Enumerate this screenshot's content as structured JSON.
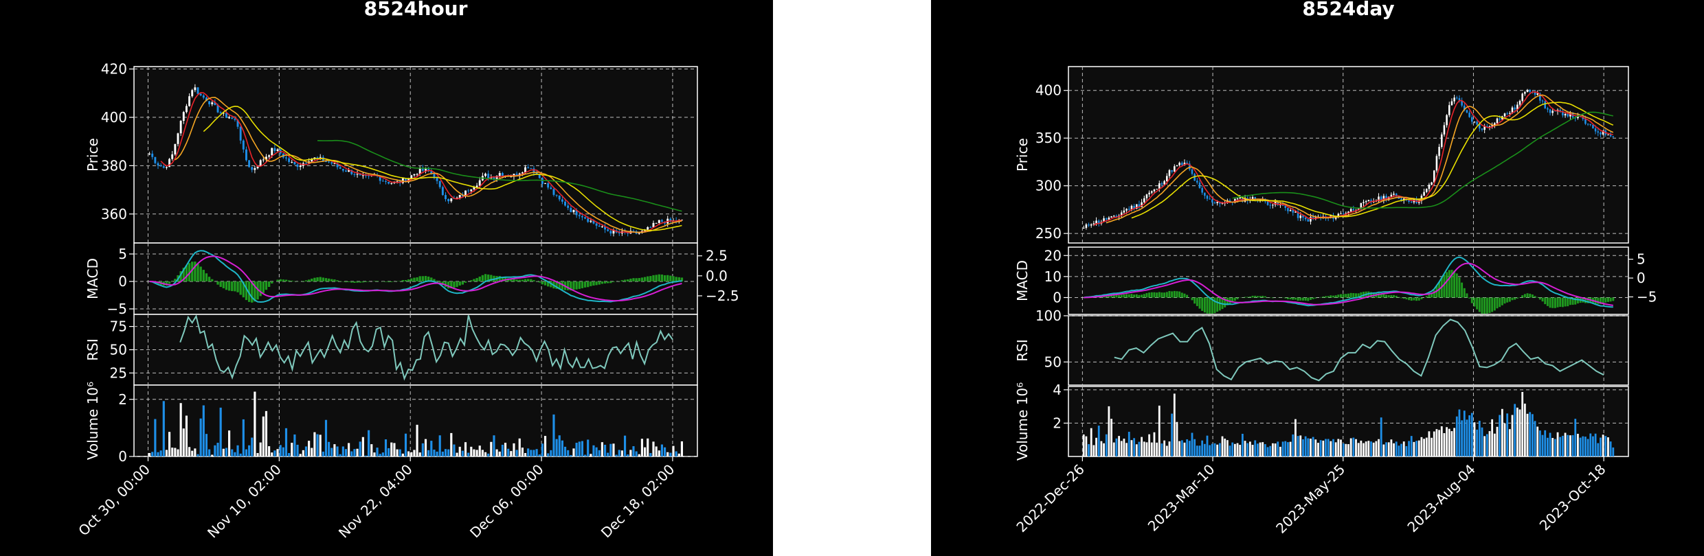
{
  "chart_data": [
    {
      "type": "candlestick",
      "title": "8524hour",
      "colors": {
        "background": "#000000",
        "panel": "#0d0d0d",
        "up": "#ffffff",
        "down": "#1e8fe8",
        "ma_short": "#e8232a",
        "ma_mid": "#f5a623",
        "ma_long": "#e8e000",
        "ma_longest": "#1a8f1a",
        "macd": "#1fb6c8",
        "signal": "#d61fd6",
        "hist": "#1f9a1f",
        "rsi": "#7fc9bd",
        "grid": "#bfbfbf"
      },
      "x_ticks": [
        "Oct 30, 00:00",
        "Nov 10, 02:00",
        "Nov 22, 04:00",
        "Dec 06, 00:00",
        "Dec 18, 02:00"
      ],
      "price": {
        "ylabel": "Price",
        "ylim": [
          348,
          421
        ],
        "yticks": [
          360,
          380,
          400,
          420
        ],
        "series": [
          385,
          381,
          379,
          383,
          395,
          405,
          413,
          409,
          407,
          404,
          401,
          400,
          398,
          384,
          378,
          381,
          384,
          387,
          385,
          382,
          380,
          381,
          383,
          383,
          382,
          381,
          379,
          378,
          377,
          375,
          375,
          376,
          374,
          373,
          373,
          374,
          376,
          378,
          378,
          376,
          369,
          366,
          366,
          368,
          371,
          373,
          376,
          375,
          377,
          376,
          376,
          378,
          380,
          377,
          373,
          370,
          366,
          364,
          361,
          360,
          358,
          356,
          354,
          353,
          352,
          352,
          352,
          352,
          353,
          355,
          357,
          357,
          357,
          357
        ]
      },
      "macd": {
        "ylabel": "MACD",
        "ylim": [
          -6,
          7
        ],
        "yticks_left": [
          -5,
          0,
          5
        ],
        "yticks_right": [
          "2.5",
          "0.0",
          "−2.5"
        ]
      },
      "rsi": {
        "ylabel": "RSI",
        "ylim": [
          12,
          88
        ],
        "yticks": [
          25,
          50,
          75
        ],
        "series": [
          58,
          70,
          85,
          79,
          86,
          68,
          70,
          52,
          56,
          39,
          28,
          26,
          31,
          20,
          33,
          43,
          65,
          61,
          55,
          62,
          42,
          49,
          58,
          49,
          55,
          42,
          36,
          43,
          29,
          49,
          43,
          51,
          58,
          36,
          43,
          50,
          42,
          53,
          65,
          54,
          47,
          60,
          52,
          72,
          79,
          59,
          51,
          48,
          54,
          72,
          74,
          53,
          65,
          60,
          29,
          36,
          19,
          29,
          28,
          39,
          40,
          64,
          69,
          54,
          37,
          44,
          58,
          57,
          43,
          51,
          62,
          55,
          87,
          72,
          63,
          55,
          50,
          60,
          45,
          48,
          56,
          55,
          51,
          44,
          50,
          63,
          57,
          54,
          49,
          38,
          50,
          59,
          50,
          33,
          40,
          30,
          50,
          36,
          31,
          41,
          31,
          31,
          40,
          30,
          31,
          33,
          30,
          44,
          52,
          53,
          46,
          52,
          57,
          40,
          58,
          44,
          35,
          50,
          55,
          58,
          70,
          61,
          67,
          61
        ]
      },
      "volume": {
        "ylabel": "Volume  10⁶",
        "ylim": [
          0,
          2.5
        ],
        "yticks": [
          0,
          2
        ],
        "bars": [
          0.12,
          0.16,
          1.31,
          0.15,
          0.21,
          1.94,
          0.23,
          0.86,
          0.31,
          0.3,
          0.25,
          1.87,
          0.98,
          1.43,
          0.33,
          0.2,
          0.28,
          0.08,
          1.33,
          1.79,
          0.79,
          0.25,
          0.06,
          0.39,
          0.48,
          1.71,
          0.27,
          0.3,
          0.91,
          0.25,
          0.15,
          0.39,
          0.1,
          1.3,
          0.25,
          0.39,
          0.66,
          2.27,
          0.12,
          0.49,
          1.4,
          1.59,
          0.36,
          0.14,
          0.21,
          0.26,
          0.4,
          0.32,
          0.99,
          0.12,
          0.48,
          0.77,
          0.41,
          0.09,
          0.22,
          0.35,
          0.55,
          0.3,
          0.85,
          0.78,
          0.76,
          0.17,
          1.28,
          0.51,
          0.3,
          0.43,
          0.35,
          0.08,
          0.35,
          0.26,
          0.47,
          0.18,
          0.26,
          0.27,
          0.52,
          0.68,
          0.03,
          0.92,
          0.43,
          0.14,
          0.31,
          0.09,
          0.14,
          0.6,
          0.29,
          0.49,
          0.47,
          0.25,
          0.25,
          0.1,
          0.8,
          0.18,
          0.15,
          0.23,
          1.11,
          0.14,
          0.46,
          0.61,
          0.22,
          0.55,
          0.24,
          0.17,
          0.74,
          0.17,
          0.26,
          0.25,
          0.82,
          0.42,
          0.13,
          0.34,
          0.2,
          0.5,
          0.13,
          0.34,
          0.25,
          0.23,
          0.38,
          0.23,
          0.15,
          0.1,
          0.51,
          0.74,
          0.25,
          0.17,
          0.41,
          0.48,
          0.27,
          0.19,
          0.46,
          0.23,
          0.63,
          0.31,
          0.12,
          0.28,
          0.23,
          0.23,
          0.26,
          0.07,
          0.45,
          0.72,
          0.11,
          0.22,
          1.47,
          0.61,
          0.74,
          0.56,
          0.34,
          0.22,
          0.05,
          0.28,
          0.48,
          0.52,
          0.54,
          0.06,
          0.59,
          0.09,
          0.39,
          0.32,
          0.22,
          0.5,
          0.41,
          0.13,
          0.44,
          0.45,
          0.06,
          0.23,
          0.21,
          0.73,
          0.07,
          0.23,
          0.36,
          0.18,
          0.08,
          0.62,
          0.32,
          0.63,
          0.12,
          0.52,
          0.35,
          0.21,
          0.42,
          0.32,
          0.15,
          0.13,
          0.37,
          0.18,
          0.1,
          0.53
        ]
      }
    },
    {
      "type": "candlestick",
      "title": "8524day",
      "colors": {
        "background": "#000000",
        "panel": "#0d0d0d",
        "up": "#ffffff",
        "down": "#1e8fe8",
        "ma_short": "#e8232a",
        "ma_mid": "#f5a623",
        "ma_long": "#e8e000",
        "ma_longest": "#1a8f1a",
        "macd": "#1fb6c8",
        "signal": "#d61fd6",
        "hist": "#1f9a1f",
        "rsi": "#7fc9bd",
        "grid": "#bfbfbf"
      },
      "x_ticks": [
        "2022-Dec-26",
        "2023-Mar-10",
        "2023-May-25",
        "2023-Aug-04",
        "2023-Oct-18"
      ],
      "price": {
        "ylabel": "Price",
        "ylim": [
          240,
          425
        ],
        "yticks": [
          250,
          300,
          350,
          400
        ],
        "series": [
          255,
          262,
          262,
          266,
          266,
          274,
          277,
          280,
          291,
          295,
          305,
          316,
          322,
          323,
          307,
          291,
          284,
          283,
          282,
          285,
          286,
          286,
          287,
          283,
          281,
          279,
          275,
          269,
          264,
          266,
          267,
          266,
          269,
          272,
          275,
          279,
          283,
          285,
          288,
          290,
          287,
          286,
          283,
          291,
          303,
          342,
          378,
          396,
          380,
          370,
          361,
          361,
          368,
          373,
          378,
          385,
          403,
          399,
          388,
          376,
          377,
          376,
          373,
          370,
          362,
          357,
          355,
          354
        ]
      },
      "macd": {
        "ylabel": "MACD",
        "ylim": [
          -8,
          24
        ],
        "yticks_left": [
          0,
          10,
          20
        ],
        "yticks_right": [
          "5",
          "0",
          "−5"
        ]
      },
      "rsi": {
        "ylabel": "RSI",
        "ylim": [
          25,
          100
        ],
        "yticks": [
          50,
          100
        ],
        "series": [
          55,
          53,
          63,
          65,
          60,
          68,
          75,
          78,
          81,
          72,
          72,
          82,
          87,
          70,
          42,
          35,
          31,
          44,
          50,
          52,
          54,
          48,
          51,
          50,
          42,
          44,
          40,
          33,
          30,
          37,
          40,
          54,
          60,
          60,
          69,
          65,
          73,
          72,
          62,
          53,
          48,
          40,
          35,
          55,
          79,
          89,
          96,
          93,
          84,
          66,
          45,
          44,
          47,
          52,
          65,
          70,
          61,
          53,
          55,
          48,
          46,
          40,
          44,
          48,
          52,
          46,
          40,
          36
        ]
      },
      "volume": {
        "ylabel": "Volume  10⁶",
        "ylim": [
          0,
          4.2
        ],
        "yticks": [
          2,
          4
        ],
        "bars": [
          1.32,
          1.21,
          0.74,
          1.7,
          0.68,
          1.12,
          1.85,
          0.92,
          0.79,
          1.33,
          3.01,
          2.26,
          0.84,
          1.08,
          1.23,
          0.93,
          1.07,
          0.81,
          1.48,
          0.98,
          1.1,
          0.73,
          0.88,
          1.17,
          0.89,
          0.85,
          1.33,
          0.84,
          1.45,
          0.83,
          3.05,
          0.78,
          0.96,
          0.64,
          0.9,
          2.57,
          3.77,
          2.07,
          0.92,
          0.97,
          0.83,
          1.03,
          0.94,
          1.42,
          1.04,
          0.65,
          0.65,
          0.96,
          0.75,
          1.25,
          0.68,
          0.76,
          0.79,
          0.71,
          0.8,
          1.21,
          1.07,
          0.98,
          0.65,
          0.84,
          0.75,
          0.8,
          0.7,
          1.36,
          0.94,
          0.8,
          0.89,
          0.7,
          0.97,
          0.77,
          0.84,
          0.86,
          0.74,
          0.56,
          0.63,
          0.79,
          0.78,
          0.89,
          0.58,
          0.89,
          0.92,
          0.86,
          0.88,
          1.32,
          2.24,
          1.23,
          1.26,
          1.03,
          1.21,
          1.09,
          1.07,
          1.17,
          1.02,
          0.82,
          0.98,
          0.95,
          1.05,
          1.05,
          0.92,
          1.04,
          0.85,
          1.05,
          1.01,
          0.78,
          0.75,
          0.74,
          1.09,
          1.13,
          1.04,
          0.81,
          0.95,
          0.8,
          0.9,
          0.94,
          0.9,
          0.83,
          0.92,
          1.04,
          2.34,
          0.72,
          0.85,
          0.85,
          1.02,
          0.79,
          0.89,
          0.65,
          0.76,
          0.9,
          0.62,
          0.93,
          1.23,
          0.87,
          0.94,
          0.96,
          1.16,
          1.06,
          1.13,
          1.51,
          1.12,
          1.5,
          1.64,
          1.59,
          1.81,
          1.4,
          1.76,
          1.66,
          1.52,
          1.71,
          2.4,
          2.82,
          2.17,
          2.75,
          2.21,
          2.47,
          2.61,
          2.05,
          1.61,
          2.14,
          1.74,
          1.22,
          1.34,
          1.52,
          2.23,
          1.37,
          1.78,
          2.49,
          2.85,
          1.99,
          2.58,
          1.64,
          2.49,
          3.15,
          2.93,
          2.82,
          3.87,
          3.17,
          2.56,
          2.66,
          2.54,
          2.13,
          1.79,
          1.56,
          1.29,
          1.57,
          1.12,
          1.42,
          1.11,
          1.05,
          1.45,
          1.17,
          1.24,
          1.42,
          1.29,
          1.27,
          1.28,
          2.26,
          1.36,
          1.13,
          1.21,
          1.19,
          1.05,
          1.38,
          1.21,
          1.37,
          0.8,
          1.13,
          1.31,
          1.23,
          1.15,
          0.9,
          0.54
        ]
      }
    }
  ]
}
